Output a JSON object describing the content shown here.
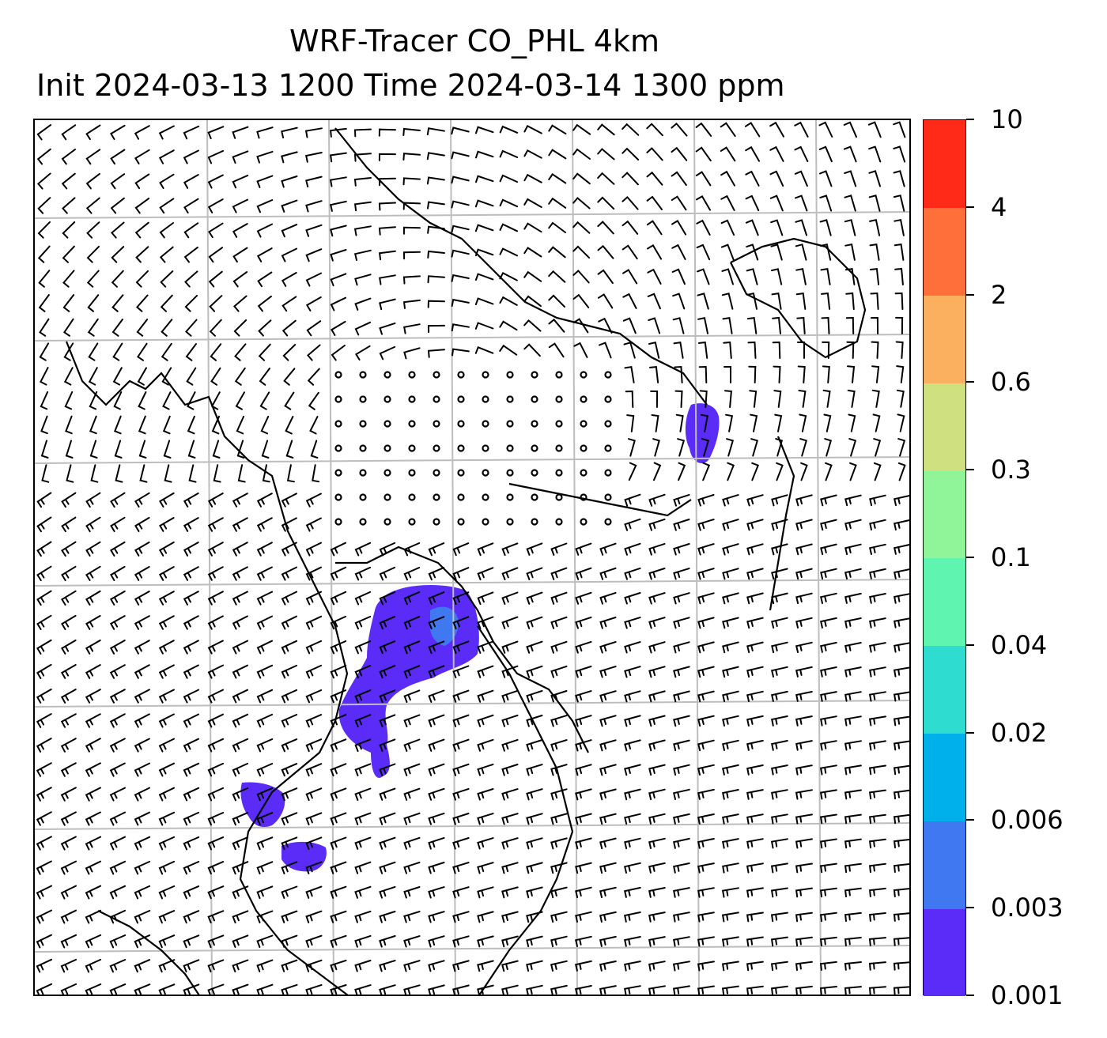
{
  "title": {
    "line1": "WRF-Tracer CO_PHL 4km",
    "line2": "Init 2024-03-13 1200 Time 2024-03-14 1300 ppm"
  },
  "colorbar": {
    "levels": [
      {
        "label": "0.001",
        "color": "#5b2cf8"
      },
      {
        "label": "0.003",
        "color": "#3f78f0"
      },
      {
        "label": "0.006",
        "color": "#00b0ea"
      },
      {
        "label": "0.02",
        "color": "#2fdcd0"
      },
      {
        "label": "0.04",
        "color": "#5ff5b0"
      },
      {
        "label": "0.1",
        "color": "#90f598"
      },
      {
        "label": "0.3",
        "color": "#cfe080"
      },
      {
        "label": "0.6",
        "color": "#fbb060"
      },
      {
        "label": "2",
        "color": "#ff6f3a"
      },
      {
        "label": "4",
        "color": "#ff2a18"
      },
      {
        "label": "10",
        "color": null
      }
    ]
  },
  "map": {
    "grid_color": "#bdbdbd",
    "coastline_color": "#000000",
    "barb_color": "#000000",
    "plume_color": "#5b2cf8",
    "plume_core_color": "#3f78f0"
  }
}
